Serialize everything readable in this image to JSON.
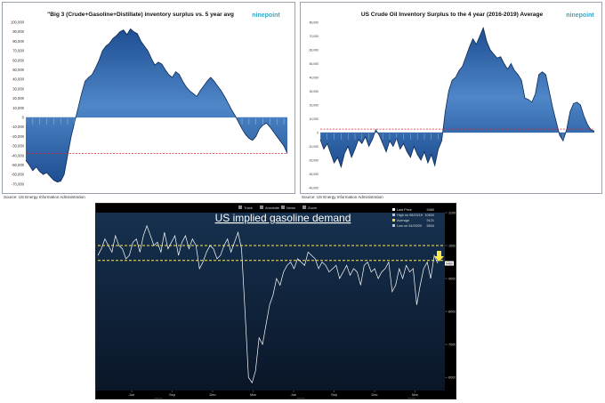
{
  "chart_data": [
    {
      "type": "area",
      "title": "\"Big 3 (Crude+Gasoline+Distillate) inventory surplus vs. 5 year avg",
      "logo": "ninepoint",
      "source": "Source: US Energy Information Administration",
      "ylim": [
        -72000,
        100000
      ],
      "yticks": [
        "100,000",
        "90,000",
        "80,000",
        "70,000",
        "60,000",
        "50,000",
        "40,000",
        "30,000",
        "20,000",
        "10,000",
        "0",
        "-10,000",
        "-20,000",
        "-30,000",
        "-40,000",
        "-50,000",
        "-60,000",
        "-70,000"
      ],
      "ytick_values": [
        100000,
        90000,
        80000,
        70000,
        60000,
        50000,
        40000,
        30000,
        20000,
        10000,
        0,
        -10000,
        -20000,
        -30000,
        -40000,
        -50000,
        -60000,
        -70000
      ],
      "reference_line": -38000,
      "values": [
        -45000,
        -50000,
        -56000,
        -52000,
        -57000,
        -60000,
        -58000,
        -62000,
        -66000,
        -68000,
        -67000,
        -60000,
        -40000,
        -20000,
        -5000,
        10000,
        25000,
        38000,
        42000,
        45000,
        52000,
        60000,
        70000,
        75000,
        78000,
        83000,
        86000,
        90000,
        92000,
        87000,
        93000,
        90000,
        88000,
        80000,
        75000,
        70000,
        62000,
        55000,
        58000,
        56000,
        50000,
        45000,
        42000,
        48000,
        45000,
        38000,
        32000,
        28000,
        25000,
        22000,
        28000,
        33000,
        38000,
        42000,
        38000,
        33000,
        28000,
        22000,
        15000,
        8000,
        2000,
        -5000,
        -12000,
        -18000,
        -22000,
        -24000,
        -20000,
        -12000,
        -8000,
        -6000,
        -10000,
        -15000,
        -20000,
        -25000,
        -30000,
        -38000
      ]
    },
    {
      "type": "area",
      "title": "US Crude Oil Inventory Surplus to the 4 year (2016-2019) Average",
      "logo": "ninepoint",
      "source": "Source: US Energy Information Administration",
      "ylim": [
        -40000,
        80000
      ],
      "yticks": [
        "80,000",
        "70,000",
        "60,000",
        "50,000",
        "40,000",
        "30,000",
        "20,000",
        "10,000",
        "0",
        "-10,000",
        "-20,000",
        "-30,000",
        "-40,000"
      ],
      "ytick_values": [
        80000,
        70000,
        60000,
        50000,
        40000,
        30000,
        20000,
        10000,
        0,
        -10000,
        -20000,
        -30000,
        -40000
      ],
      "reference_line": 2500,
      "values": [
        -5000,
        -12000,
        -8000,
        -15000,
        -22000,
        -18000,
        -25000,
        -15000,
        -10000,
        -18000,
        -12000,
        -5000,
        -8000,
        -3000,
        -10000,
        -5000,
        2000,
        -2000,
        -8000,
        -14000,
        -6000,
        -10000,
        -4000,
        -12000,
        -8000,
        -14000,
        -18000,
        -10000,
        -16000,
        -20000,
        -14000,
        -22000,
        -16000,
        -24000,
        -12000,
        -6000,
        15000,
        30000,
        38000,
        40000,
        45000,
        48000,
        55000,
        62000,
        68000,
        64000,
        70000,
        76000,
        66000,
        60000,
        57000,
        54000,
        55000,
        50000,
        46000,
        50000,
        45000,
        42000,
        38000,
        25000,
        24000,
        22000,
        28000,
        42000,
        44000,
        42000,
        30000,
        18000,
        8000,
        -2000,
        -6000,
        2000,
        15000,
        21000,
        22000,
        20000,
        12000,
        6000,
        2000,
        1000
      ]
    },
    {
      "type": "line",
      "title": "US implied gasoline demand",
      "toolbar": [
        "Track",
        "Annotate",
        "News",
        "Zoom"
      ],
      "legend": {
        "last_price_label": "Last Price",
        "last_price": "9460",
        "high_label": "High on 08/23/19",
        "high": "10600",
        "average_label": "Average",
        "average": "9121",
        "low_label": "Low on 04/03/20",
        "low": "5834"
      },
      "ylim": [
        5600,
        11000
      ],
      "yticks": [
        "11000",
        "10000",
        "9000",
        "8000",
        "7000",
        "6000"
      ],
      "ytick_values": [
        11000,
        10000,
        9000,
        8000,
        7000,
        6000
      ],
      "x_month_labels": [
        "Jun",
        "Sep",
        "Dec",
        "Mar",
        "Jun",
        "Sep",
        "Dec",
        "Mar"
      ],
      "x_year_labels": [
        "2019",
        "2020",
        "2021"
      ],
      "last_price_tag": "9460",
      "dashed_levels": [
        10000,
        9550
      ],
      "values": [
        9700,
        9900,
        10200,
        10000,
        9800,
        10300,
        10000,
        9900,
        9600,
        9700,
        10100,
        10200,
        9800,
        10300,
        10600,
        10300,
        10000,
        10100,
        9800,
        10400,
        9900,
        10100,
        10300,
        9700,
        10100,
        10300,
        9900,
        10200,
        10000,
        9300,
        9500,
        9800,
        10000,
        9900,
        9600,
        9700,
        10000,
        10200,
        9800,
        10100,
        10400,
        9900,
        8000,
        6000,
        5834,
        6200,
        7200,
        7000,
        7600,
        8200,
        8500,
        9000,
        8800,
        9200,
        9400,
        9500,
        9300,
        9600,
        9500,
        9400,
        9800,
        9700,
        9600,
        9300,
        9500,
        9400,
        9200,
        9300,
        9400,
        9000,
        9200,
        9400,
        9100,
        9300,
        9200,
        8800,
        9400,
        9500,
        9200,
        9300,
        9000,
        9200,
        9300,
        9500,
        8600,
        8800,
        9300,
        9000,
        9400,
        9200,
        9300,
        8200,
        8800,
        9300,
        9500,
        9000,
        9700,
        9460
      ]
    }
  ]
}
